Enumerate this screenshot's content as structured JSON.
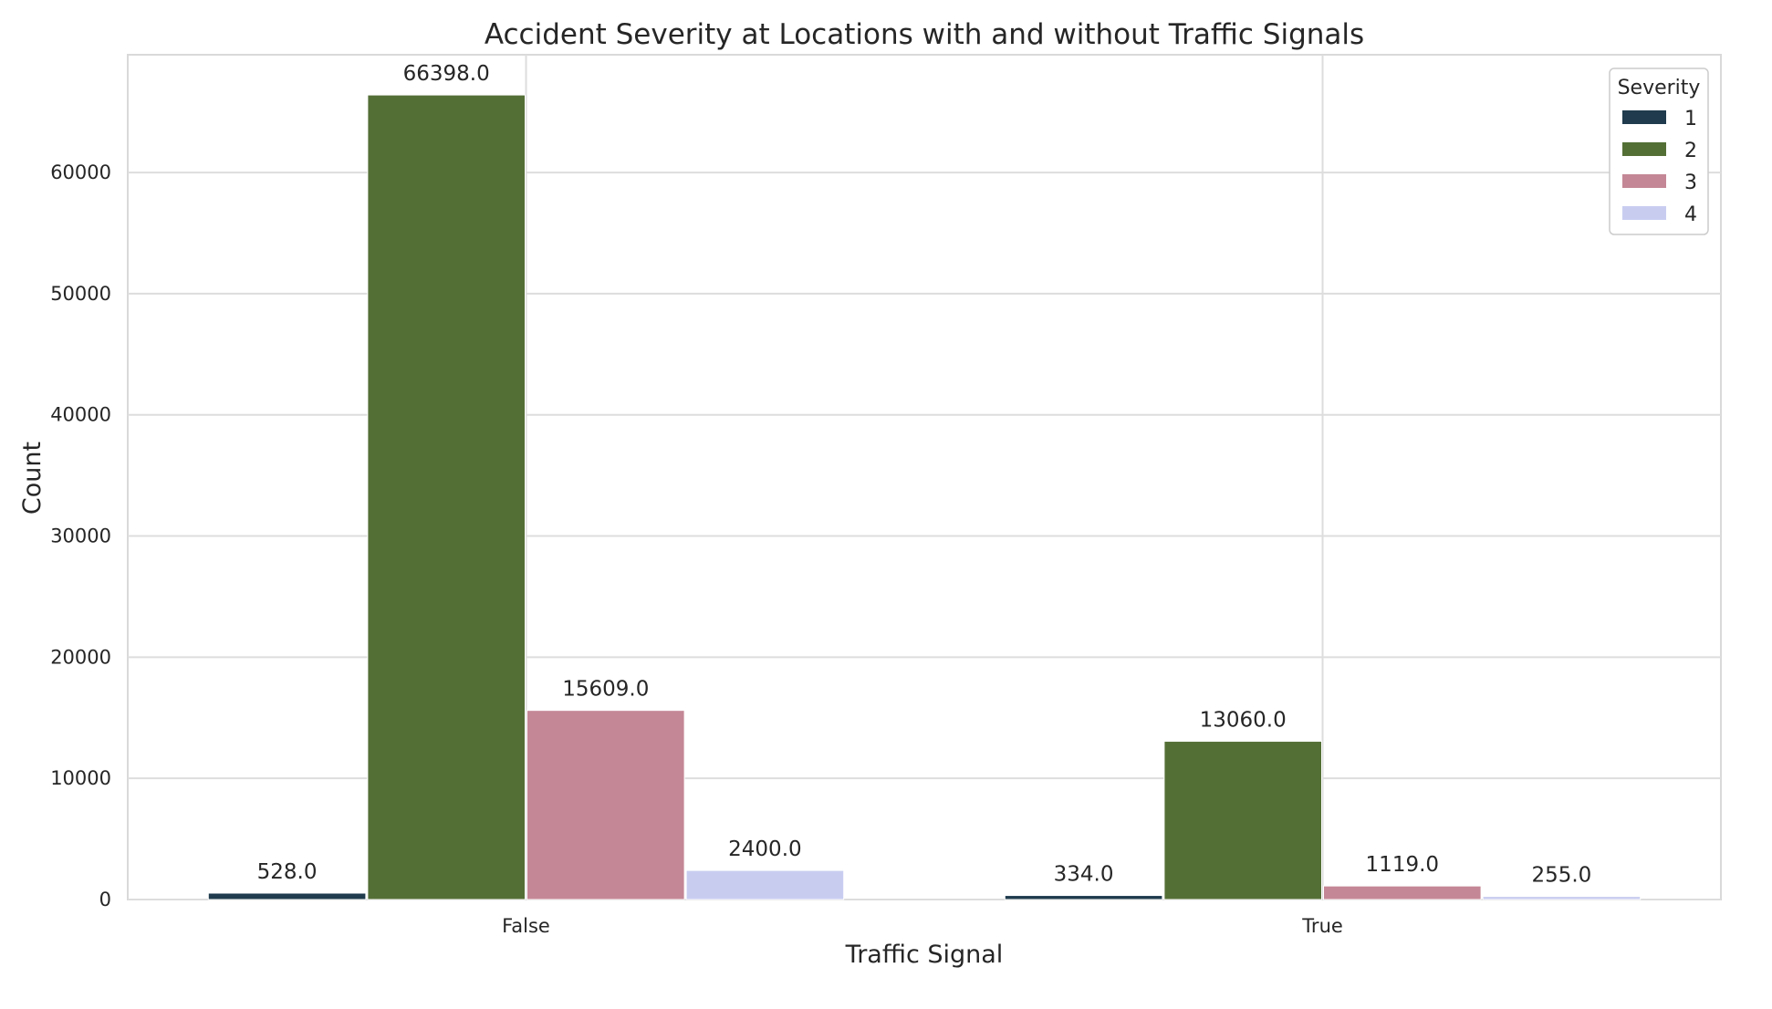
{
  "chart_data": {
    "type": "bar",
    "title": "Accident Severity at Locations with and without Traffic Signals",
    "xlabel": "Traffic Signal",
    "ylabel": "Count",
    "categories": [
      "False",
      "True"
    ],
    "series": [
      {
        "name": "1",
        "color": "#1f3b4d",
        "values": [
          528,
          334
        ],
        "labels": [
          "528.0",
          "334.0"
        ]
      },
      {
        "name": "2",
        "color": "#546f36",
        "values": [
          66398,
          13060
        ],
        "labels": [
          "66398.0",
          "13060.0"
        ]
      },
      {
        "name": "3",
        "color": "#c48796",
        "values": [
          15609,
          1119
        ],
        "labels": [
          "15609.0",
          "1119.0"
        ]
      },
      {
        "name": "4",
        "color": "#c8cdf0",
        "values": [
          2400,
          255
        ],
        "labels": [
          "2400.0",
          "255.0"
        ]
      }
    ],
    "ylim": [
      0,
      69718
    ],
    "yticks": [
      0,
      10000,
      20000,
      30000,
      40000,
      50000,
      60000
    ],
    "ytick_labels": [
      "0",
      "10000",
      "20000",
      "30000",
      "40000",
      "50000",
      "60000"
    ],
    "grid": true,
    "legend": {
      "title": "Severity",
      "placement": "top-right"
    }
  }
}
